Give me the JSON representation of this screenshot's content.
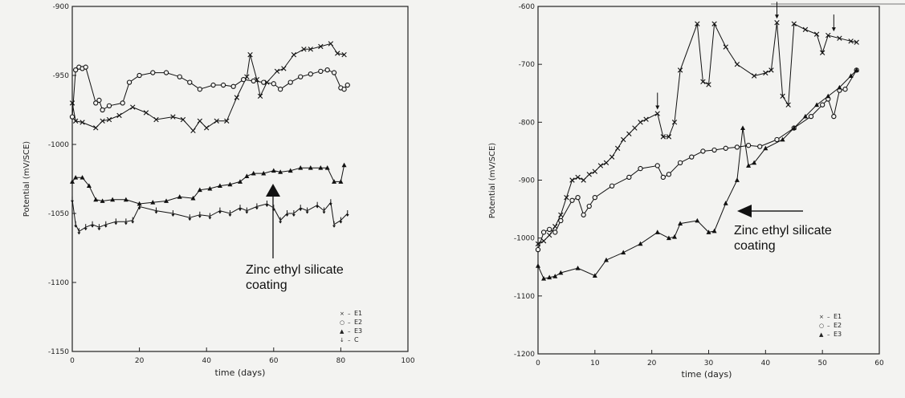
{
  "chart_data": [
    {
      "type": "line",
      "ylabel": "Potential  (mV/SCE)",
      "xlabel": "time  (days)",
      "xlim": [
        0,
        100
      ],
      "ylim": [
        -1150,
        -900
      ],
      "x_ticks": [
        "0",
        "20",
        "40",
        "60",
        "80",
        "100"
      ],
      "y_ticks": [
        "-900",
        "-950",
        "-1000",
        "-1050",
        "-1100",
        "-1150"
      ],
      "legend_position": "bottom-right",
      "legend": [
        {
          "symbol": "×",
          "dash": "–",
          "label": "E1"
        },
        {
          "symbol": "○",
          "dash": "–",
          "label": "E2"
        },
        {
          "symbol": "▲",
          "dash": "–",
          "label": "E3"
        },
        {
          "symbol": "↓",
          "dash": "–",
          "label": "C"
        }
      ],
      "series": [
        {
          "name": "E1",
          "marker": "x",
          "points": [
            [
              0,
              -970
            ],
            [
              1,
              -983
            ],
            [
              3,
              -984
            ],
            [
              7,
              -988
            ],
            [
              9,
              -983
            ],
            [
              11,
              -982
            ],
            [
              14,
              -979
            ],
            [
              18,
              -973
            ],
            [
              22,
              -977
            ],
            [
              25,
              -982
            ],
            [
              30,
              -980
            ],
            [
              33,
              -982
            ],
            [
              36,
              -990
            ],
            [
              38,
              -983
            ],
            [
              40,
              -988
            ],
            [
              43,
              -983
            ],
            [
              46,
              -983
            ],
            [
              49,
              -966
            ],
            [
              52,
              -951
            ],
            [
              53,
              -935
            ],
            [
              55,
              -953
            ],
            [
              56,
              -965
            ],
            [
              58,
              -955
            ],
            [
              61,
              -947
            ],
            [
              63,
              -945
            ],
            [
              66,
              -935
            ],
            [
              69,
              -931
            ],
            [
              71,
              -931
            ],
            [
              74,
              -929
            ],
            [
              77,
              -927
            ],
            [
              79,
              -934
            ],
            [
              81,
              -935
            ]
          ]
        },
        {
          "name": "E2",
          "marker": "o",
          "points": [
            [
              0,
              -980
            ],
            [
              1,
              -946
            ],
            [
              2,
              -944
            ],
            [
              3,
              -945
            ],
            [
              4,
              -944
            ],
            [
              7,
              -970
            ],
            [
              8,
              -968
            ],
            [
              9,
              -975
            ],
            [
              11,
              -972
            ],
            [
              15,
              -970
            ],
            [
              17,
              -955
            ],
            [
              20,
              -950
            ],
            [
              24,
              -948
            ],
            [
              28,
              -948
            ],
            [
              32,
              -951
            ],
            [
              35,
              -955
            ],
            [
              38,
              -960
            ],
            [
              42,
              -957
            ],
            [
              45,
              -957
            ],
            [
              48,
              -958
            ],
            [
              51,
              -953
            ],
            [
              54,
              -954
            ],
            [
              57,
              -955
            ],
            [
              60,
              -956
            ],
            [
              62,
              -960
            ],
            [
              65,
              -955
            ],
            [
              68,
              -951
            ],
            [
              71,
              -949
            ],
            [
              74,
              -947
            ],
            [
              76,
              -946
            ],
            [
              78,
              -948
            ],
            [
              80,
              -959
            ],
            [
              81,
              -960
            ],
            [
              82,
              -957
            ]
          ]
        },
        {
          "name": "E3",
          "marker": "triangle",
          "points": [
            [
              0,
              -1027
            ],
            [
              1,
              -1024
            ],
            [
              3,
              -1024
            ],
            [
              5,
              -1030
            ],
            [
              7,
              -1040
            ],
            [
              9,
              -1041
            ],
            [
              12,
              -1040
            ],
            [
              16,
              -1040
            ],
            [
              20,
              -1043
            ],
            [
              24,
              -1042
            ],
            [
              28,
              -1041
            ],
            [
              32,
              -1038
            ],
            [
              36,
              -1039
            ],
            [
              38,
              -1033
            ],
            [
              41,
              -1032
            ],
            [
              44,
              -1030
            ],
            [
              47,
              -1029
            ],
            [
              50,
              -1027
            ],
            [
              52,
              -1023
            ],
            [
              54,
              -1021
            ],
            [
              57,
              -1021
            ],
            [
              60,
              -1019
            ],
            [
              62,
              -1020
            ],
            [
              65,
              -1019
            ],
            [
              68,
              -1017
            ],
            [
              71,
              -1017
            ],
            [
              74,
              -1017
            ],
            [
              76,
              -1017
            ],
            [
              78,
              -1027
            ],
            [
              80,
              -1027
            ],
            [
              81,
              -1015
            ]
          ]
        },
        {
          "name": "C",
          "marker": "arrow-down",
          "points": [
            [
              0,
              -1040
            ],
            [
              1,
              -1058
            ],
            [
              2,
              -1063
            ],
            [
              4,
              -1060
            ],
            [
              6,
              -1058
            ],
            [
              8,
              -1060
            ],
            [
              10,
              -1058
            ],
            [
              13,
              -1056
            ],
            [
              16,
              -1056
            ],
            [
              18,
              -1055
            ],
            [
              20,
              -1045
            ],
            [
              25,
              -1048
            ],
            [
              30,
              -1050
            ],
            [
              35,
              -1053
            ],
            [
              38,
              -1051
            ],
            [
              41,
              -1052
            ],
            [
              44,
              -1048
            ],
            [
              47,
              -1050
            ],
            [
              50,
              -1046
            ],
            [
              52,
              -1048
            ],
            [
              55,
              -1045
            ],
            [
              58,
              -1043
            ],
            [
              60,
              -1046
            ],
            [
              62,
              -1055
            ],
            [
              64,
              -1050
            ],
            [
              66,
              -1050
            ],
            [
              68,
              -1046
            ],
            [
              70,
              -1048
            ],
            [
              73,
              -1044
            ],
            [
              75,
              -1048
            ],
            [
              77,
              -1042
            ],
            [
              78,
              -1058
            ],
            [
              80,
              -1055
            ],
            [
              82,
              -1050
            ]
          ]
        }
      ],
      "annotation": {
        "text_line1": "Zinc ethyl silicate",
        "text_line2": "coating"
      }
    },
    {
      "type": "line",
      "ylabel": "Potential  (mV/SCE)",
      "xlabel": "time  (days)",
      "xlim": [
        0,
        60
      ],
      "ylim": [
        -1200,
        -600
      ],
      "x_ticks": [
        "0",
        "10",
        "20",
        "30",
        "40",
        "50",
        "60"
      ],
      "y_ticks": [
        "-600",
        "-700",
        "-800",
        "-900",
        "-1000",
        "-1100",
        "-1200"
      ],
      "legend_position": "bottom-right",
      "legend": [
        {
          "symbol": "×",
          "dash": "–",
          "label": "E1"
        },
        {
          "symbol": "○",
          "dash": "–",
          "label": "E2"
        },
        {
          "symbol": "▲",
          "dash": "–",
          "label": "E3"
        }
      ],
      "series": [
        {
          "name": "E1",
          "marker": "x",
          "points": [
            [
              0,
              -1010
            ],
            [
              1,
              -1005
            ],
            [
              2,
              -995
            ],
            [
              3,
              -980
            ],
            [
              4,
              -960
            ],
            [
              5,
              -930
            ],
            [
              6,
              -900
            ],
            [
              7,
              -895
            ],
            [
              8,
              -900
            ],
            [
              9,
              -890
            ],
            [
              10,
              -885
            ],
            [
              11,
              -875
            ],
            [
              12,
              -870
            ],
            [
              13,
              -860
            ],
            [
              14,
              -845
            ],
            [
              15,
              -830
            ],
            [
              16,
              -820
            ],
            [
              17,
              -810
            ],
            [
              18,
              -800
            ],
            [
              19,
              -795
            ],
            [
              21,
              -785
            ],
            [
              22,
              -825
            ],
            [
              23,
              -825
            ],
            [
              24,
              -800
            ],
            [
              25,
              -710
            ],
            [
              28,
              -630
            ],
            [
              29,
              -730
            ],
            [
              30,
              -735
            ],
            [
              31,
              -630
            ],
            [
              33,
              -670
            ],
            [
              35,
              -700
            ],
            [
              38,
              -720
            ],
            [
              40,
              -715
            ],
            [
              41,
              -710
            ],
            [
              42,
              -628
            ],
            [
              43,
              -755
            ],
            [
              44,
              -770
            ],
            [
              45,
              -630
            ],
            [
              47,
              -640
            ],
            [
              49,
              -648
            ],
            [
              50,
              -680
            ],
            [
              51,
              -650
            ],
            [
              53,
              -655
            ],
            [
              55,
              -660
            ],
            [
              56,
              -662
            ]
          ]
        },
        {
          "name": "E2",
          "marker": "o",
          "points": [
            [
              0,
              -1020
            ],
            [
              1,
              -990
            ],
            [
              2,
              -985
            ],
            [
              3,
              -990
            ],
            [
              4,
              -970
            ],
            [
              6,
              -935
            ],
            [
              7,
              -930
            ],
            [
              8,
              -960
            ],
            [
              9,
              -945
            ],
            [
              10,
              -930
            ],
            [
              13,
              -910
            ],
            [
              16,
              -895
            ],
            [
              18,
              -880
            ],
            [
              21,
              -875
            ],
            [
              22,
              -895
            ],
            [
              23,
              -890
            ],
            [
              25,
              -870
            ],
            [
              27,
              -860
            ],
            [
              29,
              -850
            ],
            [
              31,
              -848
            ],
            [
              33,
              -845
            ],
            [
              35,
              -843
            ],
            [
              37,
              -840
            ],
            [
              39,
              -842
            ],
            [
              42,
              -830
            ],
            [
              45,
              -810
            ],
            [
              48,
              -790
            ],
            [
              50,
              -770
            ],
            [
              51,
              -760
            ],
            [
              52,
              -790
            ],
            [
              53,
              -745
            ],
            [
              54,
              -743
            ],
            [
              56,
              -710
            ]
          ]
        },
        {
          "name": "E3",
          "marker": "triangle",
          "points": [
            [
              0,
              -1048
            ],
            [
              1,
              -1070
            ],
            [
              2,
              -1068
            ],
            [
              3,
              -1066
            ],
            [
              4,
              -1060
            ],
            [
              7,
              -1052
            ],
            [
              10,
              -1065
            ],
            [
              12,
              -1038
            ],
            [
              15,
              -1025
            ],
            [
              18,
              -1010
            ],
            [
              21,
              -990
            ],
            [
              23,
              -1000
            ],
            [
              24,
              -998
            ],
            [
              25,
              -975
            ],
            [
              28,
              -970
            ],
            [
              30,
              -990
            ],
            [
              31,
              -988
            ],
            [
              33,
              -940
            ],
            [
              35,
              -900
            ],
            [
              36,
              -810
            ],
            [
              37,
              -875
            ],
            [
              38,
              -870
            ],
            [
              40,
              -845
            ],
            [
              43,
              -830
            ],
            [
              45,
              -810
            ],
            [
              47,
              -790
            ],
            [
              49,
              -770
            ],
            [
              51,
              -755
            ],
            [
              53,
              -740
            ],
            [
              55,
              -720
            ],
            [
              56,
              -710
            ]
          ]
        }
      ],
      "arrow_markers_x": [
        21,
        42,
        52
      ],
      "annotation": {
        "text_line1": "Zinc ethyl silicate",
        "text_line2": "coating"
      }
    }
  ]
}
